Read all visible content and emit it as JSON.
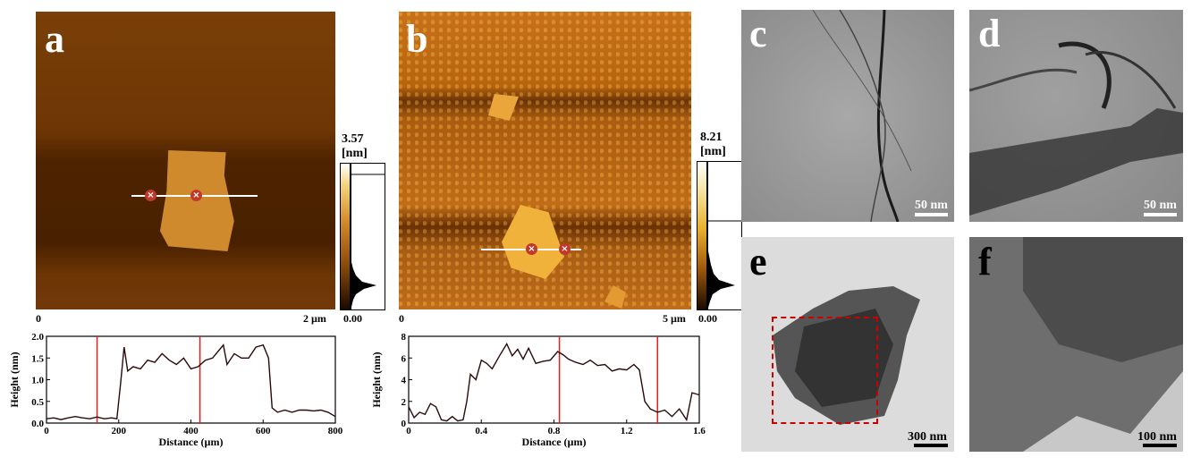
{
  "panels": {
    "a": {
      "label": "a",
      "zero": "0",
      "scale": "2 µm",
      "cbar_max": "3.57",
      "cbar_unit": "[nm]",
      "cbar_min": "0.00"
    },
    "b": {
      "label": "b",
      "zero": "0",
      "scale": "5 µm",
      "cbar_max": "8.21",
      "cbar_unit": "[nm]",
      "cbar_min": "0.00"
    },
    "c": {
      "label": "c",
      "scalebar": "50 nm"
    },
    "d": {
      "label": "d",
      "scalebar": "50 nm"
    },
    "e": {
      "label": "e",
      "scalebar": "300 nm"
    },
    "f": {
      "label": "f",
      "scalebar": "100 nm"
    }
  },
  "chart_data": [
    {
      "type": "line",
      "xlabel": "Distance (µm)",
      "ylabel": "Height (nm)",
      "xlim": [
        0,
        800
      ],
      "ylim": [
        0,
        2.0
      ],
      "xticks": [
        "0",
        "200",
        "400",
        "600",
        "800"
      ],
      "yticks": [
        "0.0",
        "0.5",
        "1.0",
        "1.5",
        "2.0"
      ],
      "markers_x": [
        140,
        425
      ],
      "x": [
        0,
        20,
        40,
        60,
        80,
        100,
        120,
        140,
        160,
        180,
        195,
        205,
        215,
        225,
        240,
        260,
        280,
        300,
        320,
        340,
        360,
        380,
        400,
        420,
        440,
        460,
        480,
        490,
        500,
        520,
        540,
        560,
        580,
        600,
        615,
        625,
        640,
        660,
        680,
        700,
        720,
        740,
        760,
        780,
        800
      ],
      "y": [
        0.1,
        0.12,
        0.08,
        0.12,
        0.15,
        0.12,
        0.1,
        0.14,
        0.1,
        0.12,
        0.1,
        0.9,
        1.75,
        1.2,
        1.3,
        1.25,
        1.45,
        1.4,
        1.6,
        1.45,
        1.35,
        1.5,
        1.25,
        1.3,
        1.45,
        1.5,
        1.7,
        1.8,
        1.35,
        1.6,
        1.5,
        1.5,
        1.75,
        1.8,
        1.5,
        0.35,
        0.25,
        0.3,
        0.25,
        0.3,
        0.3,
        0.28,
        0.3,
        0.25,
        0.15
      ]
    },
    {
      "type": "line",
      "xlabel": "Distance (µm)",
      "ylabel": "Height (nm)",
      "xlim": [
        0,
        1.6
      ],
      "ylim": [
        0,
        8
      ],
      "xticks": [
        "0",
        "0.4",
        "0.8",
        "1.2",
        "1.6"
      ],
      "yticks": [
        "0",
        "2",
        "4",
        "6",
        "8"
      ],
      "markers_x": [
        0.83,
        1.37
      ],
      "x": [
        0,
        0.03,
        0.06,
        0.09,
        0.12,
        0.15,
        0.18,
        0.21,
        0.24,
        0.27,
        0.3,
        0.32,
        0.34,
        0.37,
        0.4,
        0.43,
        0.46,
        0.5,
        0.54,
        0.57,
        0.6,
        0.63,
        0.66,
        0.7,
        0.74,
        0.78,
        0.82,
        0.85,
        0.88,
        0.92,
        0.96,
        1.0,
        1.04,
        1.08,
        1.12,
        1.16,
        1.2,
        1.24,
        1.27,
        1.3,
        1.33,
        1.37,
        1.41,
        1.45,
        1.49,
        1.53,
        1.56,
        1.6
      ],
      "y": [
        1.5,
        0.5,
        1.0,
        0.8,
        1.8,
        1.5,
        0.3,
        0.2,
        0.6,
        0.2,
        0.3,
        2.0,
        4.5,
        4.0,
        5.8,
        5.5,
        5.0,
        6.2,
        7.3,
        6.2,
        6.8,
        5.9,
        6.9,
        5.5,
        5.7,
        5.8,
        6.6,
        6.3,
        5.9,
        5.6,
        5.4,
        5.8,
        5.3,
        5.4,
        4.8,
        5.0,
        4.9,
        5.4,
        4.9,
        2.0,
        1.3,
        1.0,
        1.2,
        0.6,
        1.3,
        0.3,
        2.8,
        2.6
      ]
    }
  ]
}
